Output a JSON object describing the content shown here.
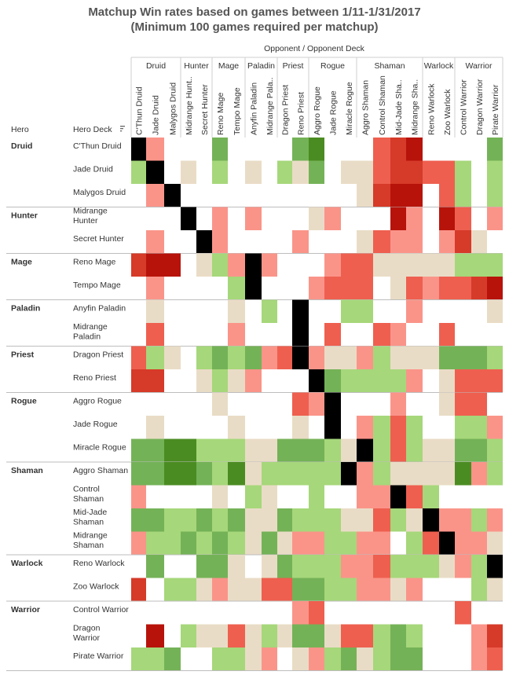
{
  "title": [
    "Matchup Win rates based on games between 1/11-1/31/2017",
    "(Minimum 100 games required per matchup)"
  ],
  "header": {
    "column_group_label": "Opponent  /  Opponent Deck",
    "hero_label": "Hero",
    "hero_deck_label": "Hero Deck"
  },
  "colors": {
    "1": "#4b8c22",
    "2": "#74b257",
    "3": "#a6d77a",
    "4": "#e9dcc6",
    "5": "#fa9489",
    "6": "#ee5f4f",
    "7": "#d63a28",
    "8": "#b7130a",
    "X": "#000000",
    "0": "#ffffff"
  },
  "chart_data": {
    "type": "heatmap",
    "title": "Matchup Win rates based on games between 1/11-1/31/2017",
    "subtitle": "(Minimum 100 games required per matchup)",
    "legend_note": "color scale: 1 = strongly favored (dark green) ... 8 = strongly unfavored (dark red); X = mirror match; 0 = fewer than 100 games",
    "opponent_groups": [
      {
        "name": "Druid",
        "decks": [
          "C'Thun Druid",
          "Jade Druid",
          "Malygos Druid"
        ]
      },
      {
        "name": "Hunter",
        "decks": [
          "Midrange Hunt..",
          "Secret Hunter"
        ]
      },
      {
        "name": "Mage",
        "decks": [
          "Reno Mage",
          "Tempo Mage"
        ]
      },
      {
        "name": "Paladin",
        "decks": [
          "Anyfin Paladin",
          "Midrange Pala.."
        ]
      },
      {
        "name": "Priest",
        "decks": [
          "Dragon Priest",
          "Reno Priest"
        ]
      },
      {
        "name": "Rogue",
        "decks": [
          "Aggro Rogue",
          "Jade Rogue",
          "Miracle Rogue"
        ]
      },
      {
        "name": "Shaman",
        "decks": [
          "Aggro Shaman",
          "Control Shaman",
          "Mid-Jade Sha..",
          "Midrange Sha.."
        ]
      },
      {
        "name": "Warlock",
        "decks": [
          "Reno Warlock",
          "Zoo Warlock"
        ]
      },
      {
        "name": "Warrior",
        "decks": [
          "Control Warrior",
          "Dragon Warrior",
          "Pirate Warrior"
        ]
      }
    ],
    "hero_groups": [
      {
        "name": "Druid",
        "decks": [
          [
            "C'Thun Druid"
          ],
          [
            "Jade Druid"
          ],
          [
            "Malygos Druid"
          ]
        ]
      },
      {
        "name": "Hunter",
        "decks": [
          [
            "Midrange",
            "Hunter"
          ],
          [
            "Secret Hunter"
          ]
        ]
      },
      {
        "name": "Mage",
        "decks": [
          [
            "Reno Mage"
          ],
          [
            "Tempo Mage"
          ]
        ]
      },
      {
        "name": "Paladin",
        "decks": [
          [
            "Anyfin Paladin"
          ],
          [
            "Midrange",
            "Paladin"
          ]
        ]
      },
      {
        "name": "Priest",
        "decks": [
          [
            "Dragon Priest"
          ],
          [
            "Reno Priest"
          ]
        ]
      },
      {
        "name": "Rogue",
        "decks": [
          [
            "Aggro Rogue"
          ],
          [
            "Jade Rogue"
          ],
          [
            "Miracle Rogue"
          ]
        ]
      },
      {
        "name": "Shaman",
        "decks": [
          [
            "Aggro Shaman"
          ],
          [
            "Control",
            "Shaman"
          ],
          [
            "Mid-Jade",
            "Shaman"
          ],
          [
            "Midrange",
            "Shaman"
          ]
        ]
      },
      {
        "name": "Warlock",
        "decks": [
          [
            "Reno Warlock"
          ],
          [
            "Zoo Warlock"
          ]
        ]
      },
      {
        "name": "Warrior",
        "decks": [
          [
            "Control Warrior"
          ],
          [
            "Dragon",
            "Warrior"
          ],
          [
            "Pirate Warrior"
          ]
        ]
      }
    ],
    "matrix": [
      "X50002000021000678000020056",
      "3X0403040342044677663030356",
      "05X000000000004788063030078",
      "000X0505000450008508605000008",
      "0500X500005000465505740000067",
      "7880435X5000566444443330000233",
      "0500003X0005666046566788005060",
      "0400004030X003300500004660000000",
      "0600005000X06006500600000450",
      "6340323256X5445344422230054",
      "77004345000X23333504666000353",
      "000004000065X0005004660000000000",
      "040000400040X0536300335000000006",
      "22113334422234X36344223235054",
      "2211231433333X5344441535033",
      "5000040340030055X6300000000020",
      "223323244233344634X55355022",
      "5332323424553355036X55455055",
      "0200224042333556333453X34500032",
      "703345446622335545000345X44445",
      "000000000056000000006007000X056",
      "0803446434224663230005777500X53",
      "33200334504532432200056506X5",
      "22112232334622315542304636X"
    ]
  }
}
